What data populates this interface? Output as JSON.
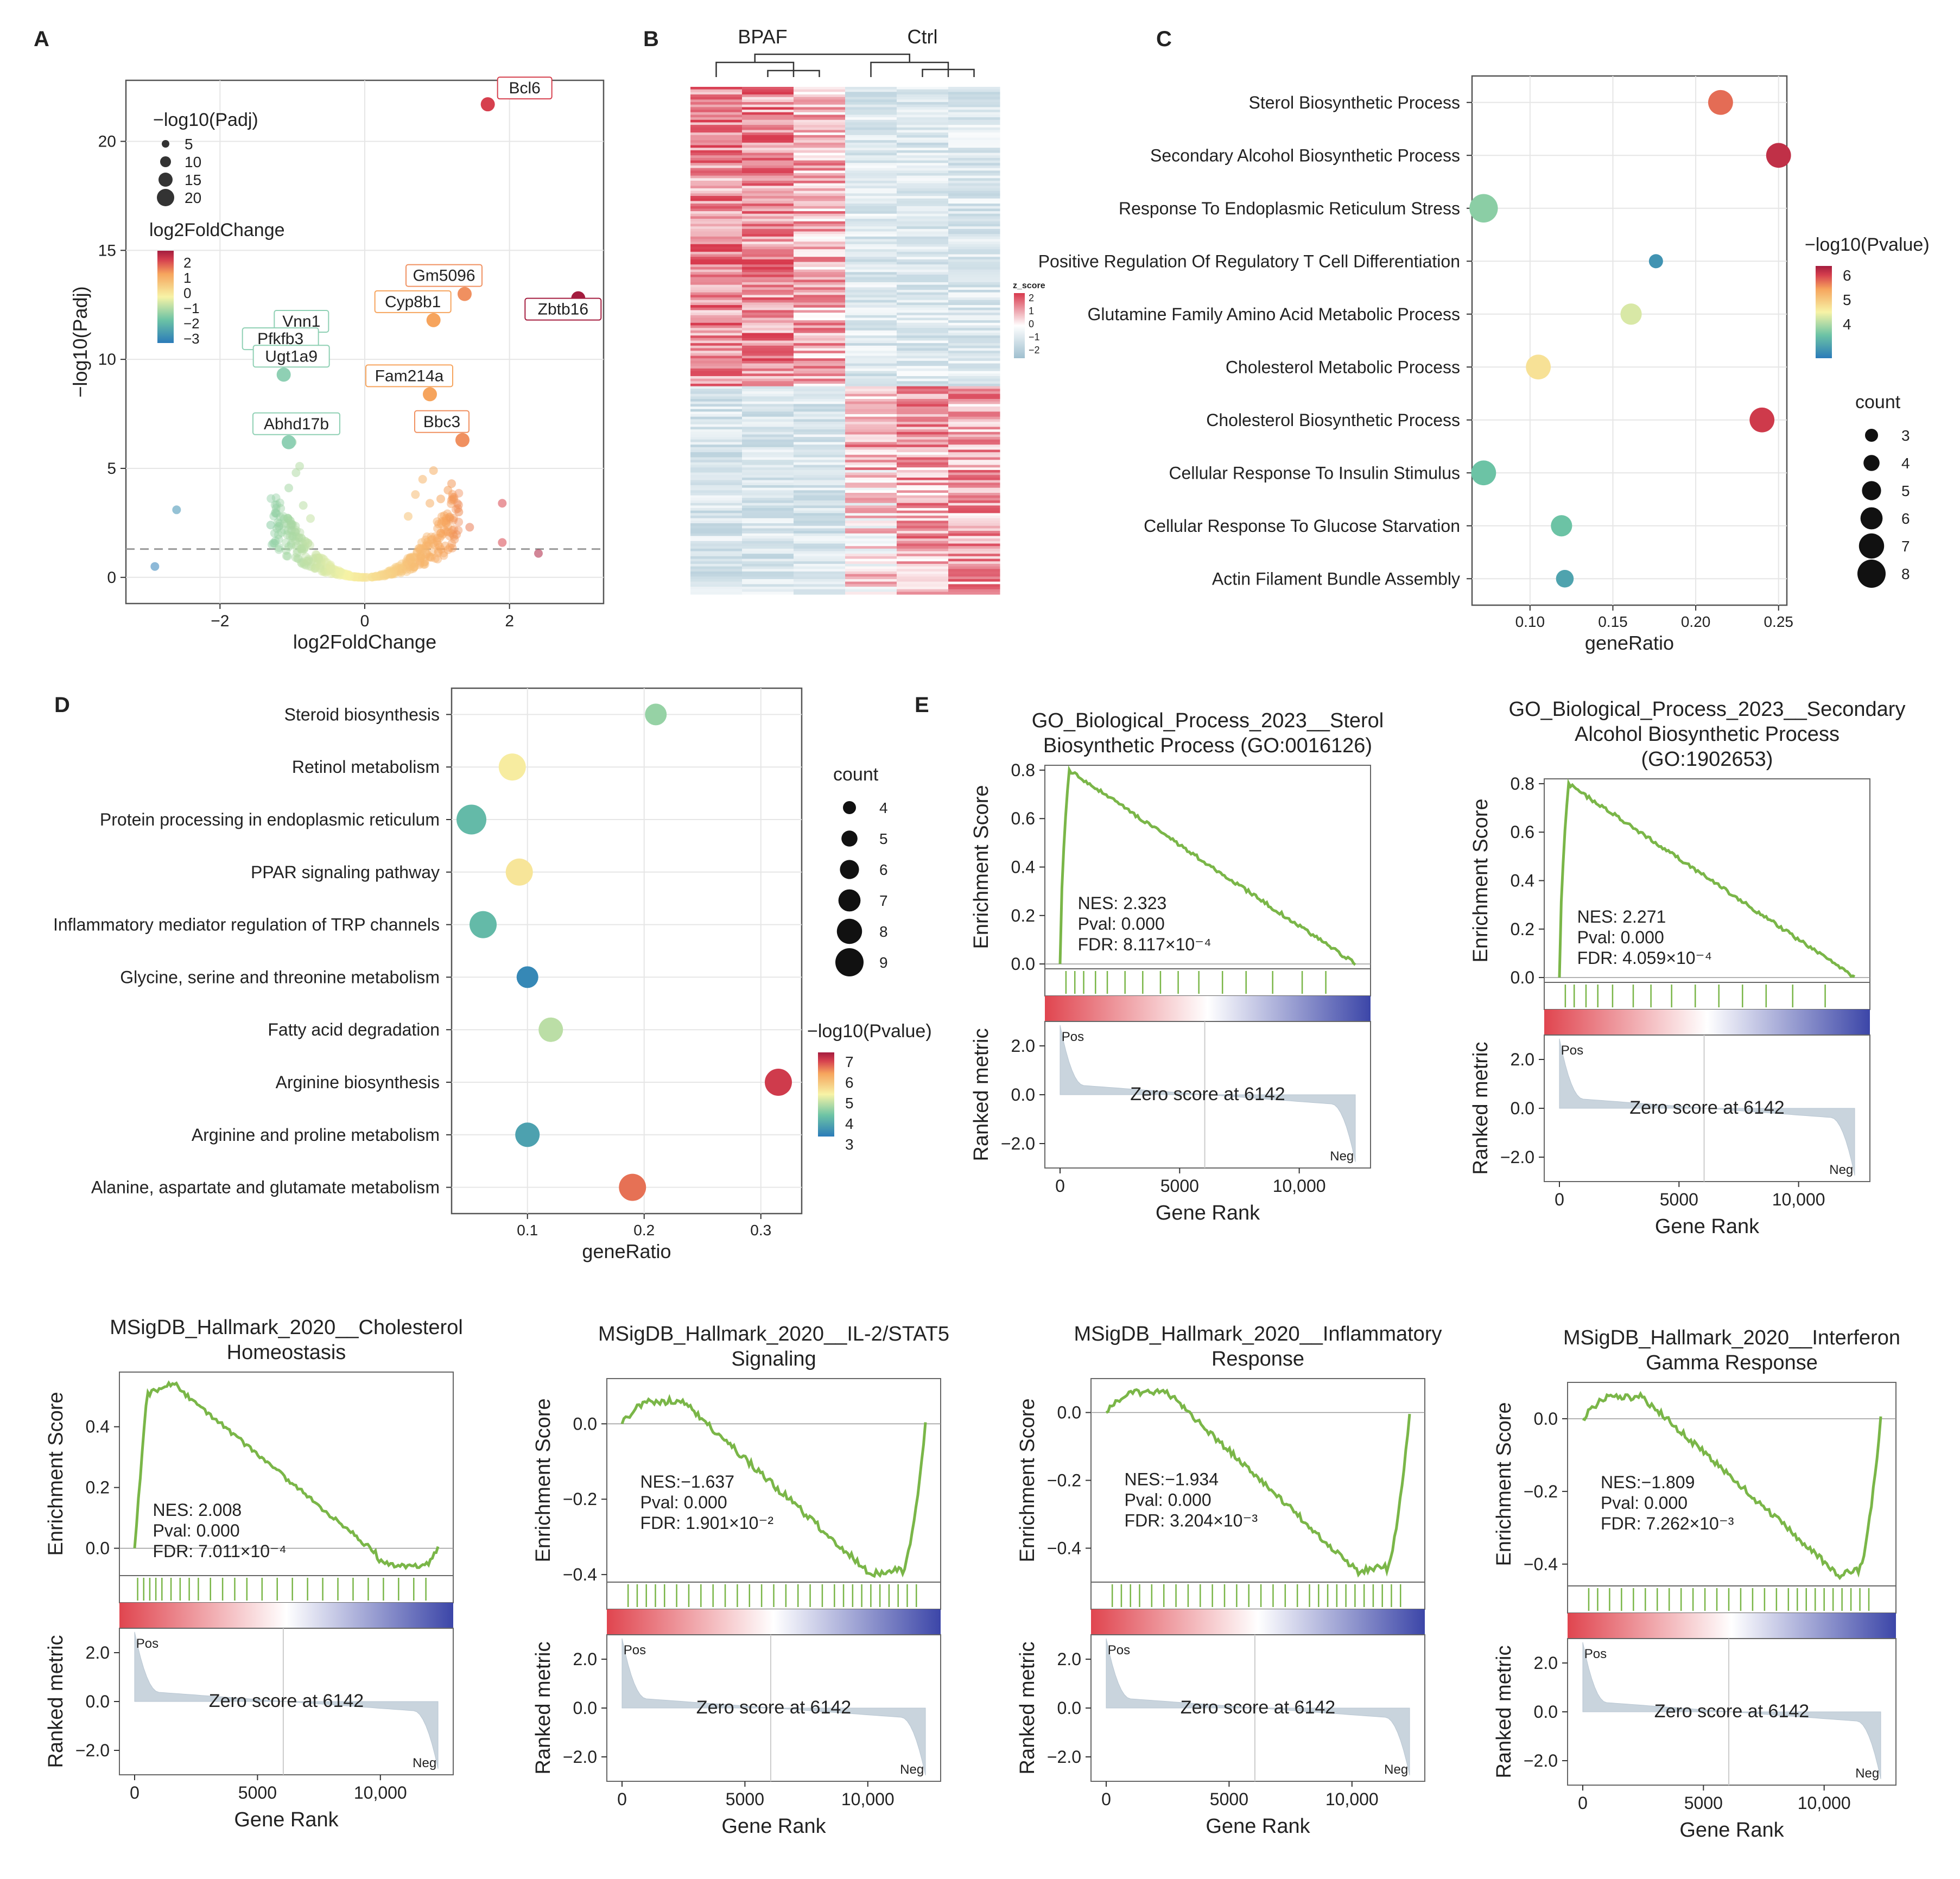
{
  "colors": {
    "ramp": [
      "#2b7bb9",
      "#6cc3a5",
      "#f7f3a6",
      "#f6a45d",
      "#d6404e",
      "#a41c3e"
    ],
    "gsea_line": "#7ab648",
    "heat_low": "#9fbfcf",
    "heat_high": "#d83a4e",
    "pos_label": "#d94b2b",
    "neg_label": "#3a5aa8"
  },
  "chart_data": [
    {
      "panel": "A",
      "type": "scatter",
      "xlabel": "log2FoldChange",
      "ylabel": "−log10(Padj)",
      "xlim": [
        -3.3,
        3.3
      ],
      "ylim": [
        -1.2,
        22.8
      ],
      "xticks": [
        -2,
        0,
        2
      ],
      "yticks": [
        0,
        5,
        10,
        15,
        20
      ],
      "threshold": 1.3,
      "size_legend": {
        "title": "−log10(Padj)",
        "items": [
          "5",
          "10",
          "15",
          "20"
        ]
      },
      "color_legend": {
        "title": "log2FoldChange",
        "items": [
          "2",
          "1",
          "0",
          "−1",
          "−2",
          "−3"
        ]
      },
      "labeled_points": [
        {
          "label": "Bcl6",
          "x": 1.7,
          "y": 21.7,
          "color": "#d6404e"
        },
        {
          "label": "Gm5096",
          "x": 1.38,
          "y": 13.0,
          "color": "#f09060"
        },
        {
          "label": "Zbtb16",
          "x": 2.95,
          "y": 12.8,
          "color": "#a41c3e"
        },
        {
          "label": "Cyp8b1",
          "x": 0.95,
          "y": 11.8,
          "color": "#f6a45d"
        },
        {
          "label": "Fam214a",
          "x": 0.9,
          "y": 8.4,
          "color": "#f6a45d"
        },
        {
          "label": "Bbc3",
          "x": 1.35,
          "y": 6.3,
          "color": "#f09060"
        },
        {
          "label": "Vnn1",
          "x": -0.98,
          "y": 10.9,
          "color": "#8fd0b4"
        },
        {
          "label": "Pfkfb3",
          "x": -1.27,
          "y": 10.1,
          "color": "#8fd0b4"
        },
        {
          "label": "Ugt1a9",
          "x": -1.12,
          "y": 9.3,
          "color": "#8fd0b4"
        },
        {
          "label": "Abhd17b",
          "x": -1.05,
          "y": 6.2,
          "color": "#8fd0b4"
        }
      ]
    },
    {
      "panel": "B",
      "type": "heatmap",
      "groups": [
        "BPAF",
        "Ctrl"
      ],
      "columns": 6,
      "legend_title": "z_score",
      "legend_ticks": [
        "2",
        "1",
        "0",
        "−1",
        "−2"
      ]
    },
    {
      "panel": "C",
      "type": "scatter",
      "xlabel": "geneRatio",
      "xlim": [
        0.065,
        0.255
      ],
      "xticks": [
        0.1,
        0.15,
        0.2,
        0.25
      ],
      "xtick_labels": [
        "0.10",
        "0.15",
        "0.20",
        "0.25"
      ],
      "color_range": [
        3,
        6.6
      ],
      "terms": [
        {
          "term": "Sterol Biosynthetic Process",
          "x": 0.215,
          "count": 6,
          "p": 6.0
        },
        {
          "term": "Secondary Alcohol Biosynthetic Process",
          "x": 0.25,
          "count": 6,
          "p": 6.4
        },
        {
          "term": "Response To Endoplasmic Reticulum Stress",
          "x": 0.072,
          "count": 7,
          "p": 4.1
        },
        {
          "term": "Positive Regulation Of Regulatory T Cell Differentiation",
          "x": 0.176,
          "count": 3,
          "p": 3.3
        },
        {
          "term": "Glutamine Family Amino Acid Metabolic Process",
          "x": 0.161,
          "count": 5,
          "p": 4.6
        },
        {
          "term": "Cholesterol Metabolic Process",
          "x": 0.105,
          "count": 6,
          "p": 5.0
        },
        {
          "term": "Cholesterol Biosynthetic Process",
          "x": 0.24,
          "count": 6,
          "p": 6.3
        },
        {
          "term": "Cellular Response To Insulin Stimulus",
          "x": 0.072,
          "count": 6,
          "p": 3.9
        },
        {
          "term": "Cellular Response To Glucose Starvation",
          "x": 0.119,
          "count": 5,
          "p": 3.9
        },
        {
          "term": "Actin Filament Bundle Assembly",
          "x": 0.121,
          "count": 4,
          "p": 3.5
        }
      ],
      "color_legend": {
        "title": "−log10(Pvalue)",
        "items": [
          "6",
          "5",
          "4"
        ]
      },
      "size_legend": {
        "title": "count",
        "items": [
          "3",
          "4",
          "5",
          "6",
          "7",
          "8"
        ]
      }
    },
    {
      "panel": "D",
      "type": "scatter",
      "xlabel": "geneRatio",
      "xlim": [
        0.035,
        0.335
      ],
      "xticks": [
        0.1,
        0.2,
        0.3
      ],
      "xtick_labels": [
        "0.1",
        "0.2",
        "0.3"
      ],
      "color_range": [
        2.8,
        7.4
      ],
      "terms": [
        {
          "term": "Steroid biosynthesis",
          "x": 0.21,
          "count": 4,
          "p": 4.3
        },
        {
          "term": "Retinol metabolism",
          "x": 0.087,
          "count": 6,
          "p": 5.2
        },
        {
          "term": "Protein processing in endoplasmic reticulum",
          "x": 0.052,
          "count": 7,
          "p": 3.8
        },
        {
          "term": "PPAR signaling pathway",
          "x": 0.093,
          "count": 6,
          "p": 5.3
        },
        {
          "term": "Inflammatory mediator regulation of TRP channels",
          "x": 0.062,
          "count": 6,
          "p": 3.8
        },
        {
          "term": "Glycine, serine and threonine metabolism",
          "x": 0.1,
          "count": 4,
          "p": 3.0
        },
        {
          "term": "Fatty acid degradation",
          "x": 0.12,
          "count": 5,
          "p": 4.6
        },
        {
          "term": "Arginine biosynthesis",
          "x": 0.315,
          "count": 6,
          "p": 7.0
        },
        {
          "term": "Arginine and proline metabolism",
          "x": 0.1,
          "count": 5,
          "p": 3.4
        },
        {
          "term": "Alanine, aspartate and glutamate metabolism",
          "x": 0.19,
          "count": 6,
          "p": 6.6
        }
      ],
      "color_legend": {
        "title": "−log10(Pvalue)",
        "items": [
          "7",
          "6",
          "5",
          "4",
          "3"
        ]
      },
      "size_legend": {
        "title": "count",
        "items": [
          "4",
          "5",
          "6",
          "7",
          "8",
          "9"
        ]
      }
    },
    {
      "panel": "E1",
      "type": "line",
      "title_lines": [
        "GO_Biological_Process_2023__Sterol",
        "Biosynthetic Process (GO:0016126)"
      ],
      "es_ticks": [
        "0.8",
        "0.6",
        "0.4",
        "0.2",
        "0.0"
      ],
      "es_range": [
        -0.02,
        0.82
      ],
      "es_tick_values": [
        0.8,
        0.6,
        0.4,
        0.2,
        0.0
      ],
      "curve": {
        "peak_x": 0.03,
        "peak_y": 0.8,
        "end_y": 0,
        "shape": "pos"
      },
      "stats": [
        "NES: 2.323",
        "Pval: 0.000",
        "FDR: 8.117×10⁻⁴"
      ],
      "hits": [
        0.02,
        0.05,
        0.08,
        0.12,
        0.16,
        0.22,
        0.28,
        0.34,
        0.4,
        0.47,
        0.55,
        0.63,
        0.72,
        0.82,
        0.9
      ],
      "xlabel": "Gene Rank",
      "xticks": [
        "0",
        "5000",
        "10,000"
      ],
      "zero_label": "Zero score at 6142"
    },
    {
      "panel": "E2",
      "type": "line",
      "title_lines": [
        "GO_Biological_Process_2023__Secondary",
        "Alcohol Biosynthetic Process",
        "(GO:1902653)"
      ],
      "es_ticks": [
        "0.8",
        "0.6",
        "0.4",
        "0.2",
        "0.0"
      ],
      "es_range": [
        -0.02,
        0.82
      ],
      "es_tick_values": [
        0.8,
        0.6,
        0.4,
        0.2,
        0.0
      ],
      "curve": {
        "peak_x": 0.03,
        "peak_y": 0.8,
        "end_y": 0,
        "shape": "pos"
      },
      "stats": [
        "NES: 2.271",
        "Pval: 0.000",
        "FDR: 4.059×10⁻⁴"
      ],
      "hits": [
        0.02,
        0.05,
        0.09,
        0.13,
        0.18,
        0.25,
        0.31,
        0.38,
        0.46,
        0.54,
        0.62,
        0.7,
        0.79,
        0.9
      ],
      "xlabel": "Gene Rank",
      "xticks": [
        "0",
        "5000",
        "10,000"
      ],
      "zero_label": "Zero score at 6142"
    },
    {
      "panel": "E3",
      "type": "line",
      "title_lines": [
        "MSigDB_Hallmark_2020__Cholesterol",
        "Homeostasis"
      ],
      "es_ticks": [
        "0.4",
        "0.2",
        "0.0"
      ],
      "es_range": [
        -0.09,
        0.58
      ],
      "es_tick_values": [
        0.4,
        0.2,
        0.0
      ],
      "curve": {
        "peak_x": 0.14,
        "peak_y": 0.55,
        "end_y": 0,
        "shape": "pos_tail"
      },
      "stats": [
        "NES: 2.008",
        "Pval: 0.000",
        "FDR: 7.011×10⁻⁴"
      ],
      "hits": [
        0.01,
        0.03,
        0.05,
        0.07,
        0.09,
        0.12,
        0.15,
        0.18,
        0.21,
        0.25,
        0.29,
        0.33,
        0.37,
        0.42,
        0.47,
        0.52,
        0.57,
        0.62,
        0.67,
        0.72,
        0.77,
        0.82,
        0.87,
        0.92,
        0.96
      ],
      "xlabel": "Gene Rank",
      "xticks": [
        "0",
        "5000",
        "10,000"
      ],
      "zero_label": "Zero score at 6142"
    },
    {
      "panel": "E4",
      "type": "line",
      "title_lines": [
        "MSigDB_Hallmark_2020__IL-2/STAT5",
        "Signaling"
      ],
      "es_ticks": [
        "0.0",
        "−0.2",
        "−0.4"
      ],
      "es_range": [
        -0.42,
        0.12
      ],
      "es_tick_values": [
        0.0,
        -0.2,
        -0.4
      ],
      "curve": {
        "peak_x": 0.82,
        "peak_y": -0.4,
        "end_y": 0,
        "shape": "neg"
      },
      "stats": [
        "NES:−1.637",
        "Pval: 0.000",
        "FDR: 1.901×10⁻²"
      ],
      "hits": [
        0.02,
        0.05,
        0.08,
        0.11,
        0.14,
        0.18,
        0.22,
        0.26,
        0.3,
        0.34,
        0.38,
        0.42,
        0.46,
        0.5,
        0.54,
        0.58,
        0.62,
        0.66,
        0.7,
        0.73,
        0.76,
        0.79,
        0.82,
        0.85,
        0.88,
        0.91,
        0.94,
        0.97
      ],
      "xlabel": "Gene Rank",
      "xticks": [
        "0",
        "5000",
        "10,000"
      ],
      "zero_label": "Zero score at 6142"
    },
    {
      "panel": "E5",
      "type": "line",
      "title_lines": [
        "MSigDB_Hallmark_2020__Inflammatory",
        "Response"
      ],
      "es_ticks": [
        "0.0",
        "−0.2",
        "−0.4"
      ],
      "es_range": [
        -0.5,
        0.1
      ],
      "es_tick_values": [
        0.0,
        -0.2,
        -0.4
      ],
      "curve": {
        "peak_x": 0.83,
        "peak_y": -0.47,
        "end_y": 0,
        "shape": "neg"
      },
      "stats": [
        "NES:−1.934",
        "Pval: 0.000",
        "FDR: 3.204×10⁻³"
      ],
      "hits": [
        0.02,
        0.05,
        0.08,
        0.11,
        0.15,
        0.19,
        0.23,
        0.27,
        0.31,
        0.35,
        0.39,
        0.43,
        0.47,
        0.51,
        0.55,
        0.59,
        0.63,
        0.67,
        0.7,
        0.73,
        0.76,
        0.79,
        0.82,
        0.85,
        0.88,
        0.91,
        0.94,
        0.97
      ],
      "xlabel": "Gene Rank",
      "xticks": [
        "0",
        "5000",
        "10,000"
      ],
      "zero_label": "Zero score at 6142"
    },
    {
      "panel": "E6",
      "type": "line",
      "title_lines": [
        "MSigDB_Hallmark_2020__Interferon",
        "Gamma Response"
      ],
      "es_ticks": [
        "0.0",
        "−0.2",
        "−0.4"
      ],
      "es_range": [
        -0.46,
        0.1
      ],
      "es_tick_values": [
        0.0,
        -0.2,
        -0.4
      ],
      "curve": {
        "peak_x": 0.86,
        "peak_y": -0.43,
        "end_y": 0,
        "shape": "neg"
      },
      "stats": [
        "NES:−1.809",
        "Pval: 0.000",
        "FDR: 7.262×10⁻³"
      ],
      "hits": [
        0.02,
        0.05,
        0.09,
        0.13,
        0.17,
        0.21,
        0.25,
        0.29,
        0.33,
        0.37,
        0.41,
        0.45,
        0.49,
        0.53,
        0.57,
        0.61,
        0.65,
        0.69,
        0.72,
        0.75,
        0.78,
        0.81,
        0.84,
        0.87,
        0.9,
        0.93,
        0.96
      ],
      "xlabel": "Gene Rank",
      "xticks": [
        "0",
        "5000",
        "10,000"
      ],
      "zero_label": "Zero score at 6142"
    }
  ],
  "rank_metric": {
    "ylabel": "Ranked metric",
    "ticks": [
      "2.0",
      "0.0",
      "−2.0"
    ],
    "tick_values": [
      2.0,
      0.0,
      -2.0
    ],
    "range": [
      -3.0,
      3.0
    ],
    "pos": "Pos",
    "neg": "Neg"
  },
  "es_ylabel": "Enrichment Score",
  "panel_labels": [
    "A",
    "B",
    "C",
    "D",
    "E"
  ]
}
